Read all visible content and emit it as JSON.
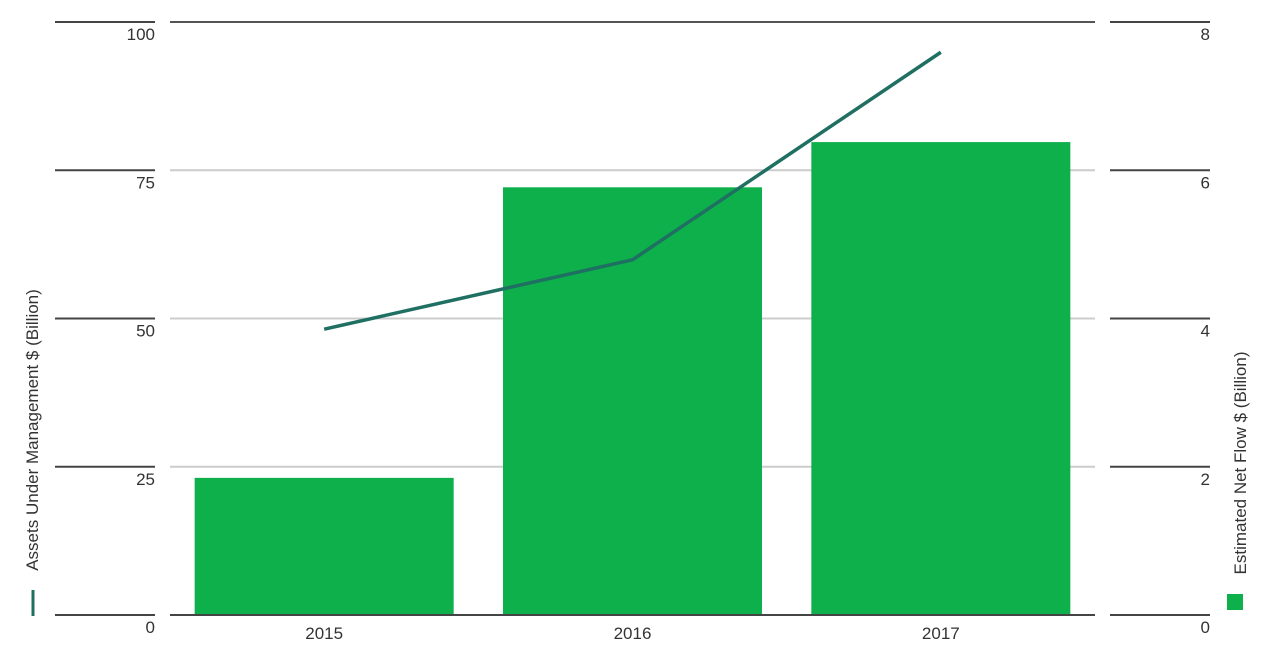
{
  "chart_data": {
    "type": "combo",
    "categories": [
      "2015",
      "2016",
      "2017"
    ],
    "ylabel": "Assets Under Management $ (Billion)",
    "y2label": "Estimated Net Flow $ (Billion)",
    "ylim": [
      0,
      100
    ],
    "yticks": [
      0,
      25,
      50,
      75,
      100
    ],
    "y2lim": [
      0,
      8
    ],
    "y2ticks": [
      0,
      2,
      4,
      6,
      8
    ],
    "grid": true,
    "series": [
      {
        "type": "bar",
        "axis": "y2",
        "color": "#0db04b",
        "values": [
          1.85,
          5.77,
          6.38
        ]
      },
      {
        "type": "line",
        "axis": "y",
        "color": "#1f6f62",
        "values": [
          48.2,
          59.9,
          94.9
        ]
      }
    ]
  }
}
